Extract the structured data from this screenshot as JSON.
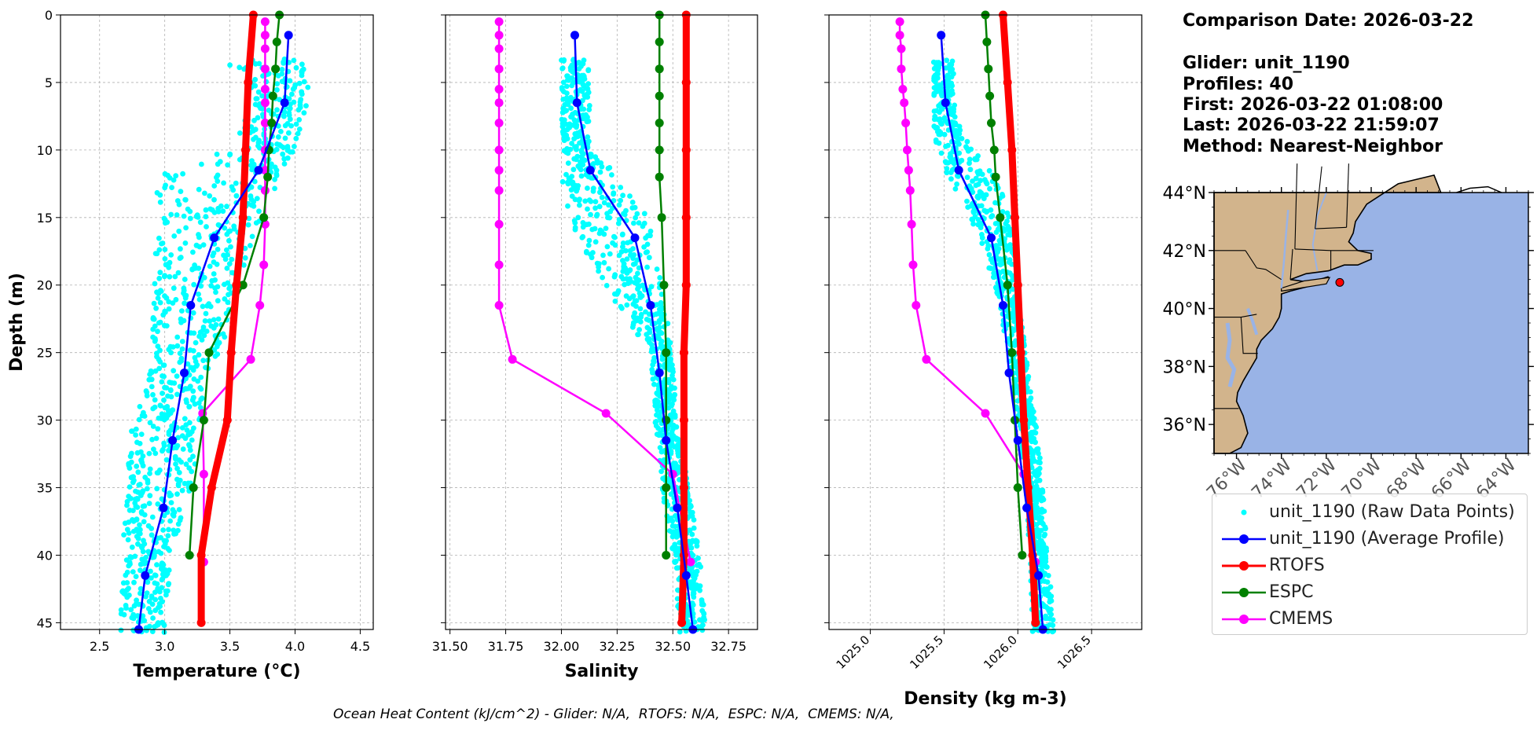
{
  "info": {
    "comparison_date": "Comparison Date: 2026-03-22",
    "glider": "Glider: unit_1190",
    "profiles": "Profiles: 40",
    "first": "First: 2026-03-22 01:08:00",
    "last": "Last: 2026-03-22 21:59:07",
    "method": "Method: Nearest-Neighbor"
  },
  "footer": "Ocean Heat Content (kJ/cm^2) - Glider: N/A,  RTOFS: N/A,  ESPC: N/A,  CMEMS: N/A,",
  "colors": {
    "raw": "#00ffff",
    "average": "#0000ff",
    "rtofs": "#ff0000",
    "espc": "#008000",
    "cmems": "#ff00ff",
    "land": "#d2b48c",
    "ocean": "#99b3e6",
    "glider_marker": "#ff0000"
  },
  "legend": [
    {
      "key": "raw",
      "label": "unit_1190 (Raw Data Points)",
      "style": "points"
    },
    {
      "key": "average",
      "label": "unit_1190 (Average Profile)",
      "style": "line-marker"
    },
    {
      "key": "rtofs",
      "label": "RTOFS",
      "style": "line-marker"
    },
    {
      "key": "espc",
      "label": "ESPC",
      "style": "line-marker"
    },
    {
      "key": "cmems",
      "label": "CMEMS",
      "style": "line-marker"
    }
  ],
  "map": {
    "lon_range": [
      -77,
      -63
    ],
    "lat_range": [
      35,
      44
    ],
    "lat_ticks": [
      36,
      38,
      40,
      42,
      44
    ],
    "lat_tick_labels": [
      "36°N",
      "38°N",
      "40°N",
      "42°N",
      "44°N"
    ],
    "lon_ticks": [
      -76,
      -74,
      -72,
      -70,
      -68,
      -66,
      -64
    ],
    "lon_tick_labels": [
      "76°W",
      "74°W",
      "72°W",
      "70°W",
      "68°W",
      "66°W",
      "64°W"
    ],
    "glider_position": {
      "lon": -71.4,
      "lat": 40.9
    }
  },
  "chart_data": [
    {
      "type": "line",
      "title": "",
      "xlabel": "Temperature (°C)",
      "ylabel": "Depth (m)",
      "xlim": [
        2.2,
        4.6
      ],
      "ylim": [
        45.5,
        0
      ],
      "xticks": [
        2.5,
        3.0,
        3.5,
        4.0,
        4.5
      ],
      "xtick_labels": [
        "2.5",
        "3.0",
        "3.5",
        "4.0",
        "4.5"
      ],
      "yticks": [
        0,
        5,
        10,
        15,
        20,
        25,
        30,
        35,
        40,
        45
      ],
      "ytick_labels": [
        "0",
        "5",
        "10",
        "15",
        "20",
        "25",
        "30",
        "35",
        "40",
        "45"
      ],
      "grid": true,
      "raw_band": [
        [
          3.5,
          4.1
        ],
        [
          3.7,
          4.1
        ],
        [
          3.6,
          4.05
        ],
        [
          3.55,
          4.0
        ],
        [
          2.95,
          3.9
        ],
        [
          2.92,
          3.75
        ],
        [
          2.92,
          3.55
        ],
        [
          2.9,
          3.45
        ],
        [
          2.88,
          3.3
        ],
        [
          2.75,
          3.28
        ],
        [
          2.7,
          3.2
        ],
        [
          2.68,
          3.05
        ],
        [
          2.66,
          3.0
        ]
      ],
      "raw_band_depths": [
        3.5,
        6,
        8,
        10,
        12,
        15,
        20,
        25,
        27,
        30,
        35,
        40,
        45.5
      ],
      "series": [
        {
          "key": "average",
          "name": "unit_1190 (Average Profile)",
          "y": [
            1.5,
            6.5,
            11.5,
            16.5,
            21.5,
            26.5,
            31.5,
            36.5,
            41.5,
            45.5
          ],
          "x": [
            3.95,
            3.92,
            3.72,
            3.38,
            3.2,
            3.15,
            3.06,
            2.99,
            2.85,
            2.8
          ]
        },
        {
          "key": "rtofs",
          "name": "RTOFS",
          "y": [
            0,
            5,
            10,
            15,
            20,
            25,
            30,
            35,
            40,
            45
          ],
          "x": [
            3.68,
            3.64,
            3.62,
            3.6,
            3.55,
            3.51,
            3.48,
            3.36,
            3.28,
            3.28
          ]
        },
        {
          "key": "espc",
          "name": "ESPC",
          "y": [
            0,
            2,
            4,
            6,
            8,
            10,
            12,
            15,
            20,
            25,
            30,
            35,
            40
          ],
          "x": [
            3.88,
            3.86,
            3.85,
            3.83,
            3.82,
            3.8,
            3.79,
            3.76,
            3.6,
            3.34,
            3.3,
            3.22,
            3.19
          ]
        },
        {
          "key": "cmems",
          "name": "CMEMS",
          "y": [
            0.5,
            1.5,
            2.5,
            4,
            5.5,
            6.5,
            8,
            10,
            11.5,
            13,
            15.5,
            18.5,
            21.5,
            25.5,
            29.5,
            34,
            40.5
          ],
          "x": [
            3.77,
            3.77,
            3.77,
            3.77,
            3.77,
            3.77,
            3.77,
            3.77,
            3.77,
            3.77,
            3.77,
            3.76,
            3.73,
            3.66,
            3.29,
            3.3,
            3.3
          ]
        }
      ]
    },
    {
      "type": "line",
      "title": "",
      "xlabel": "Salinity",
      "ylabel": "",
      "xlim": [
        31.48,
        32.88
      ],
      "ylim": [
        45.5,
        0
      ],
      "xticks": [
        31.5,
        31.75,
        32.0,
        32.25,
        32.5,
        32.75
      ],
      "xtick_labels": [
        "31.50",
        "31.75",
        "32.00",
        "32.25",
        "32.50",
        "32.75"
      ],
      "yticks": [
        0,
        5,
        10,
        15,
        20,
        25,
        30,
        35,
        40,
        45
      ],
      "grid": true,
      "raw_band": [
        [
          32.0,
          32.13
        ],
        [
          32.0,
          32.13
        ],
        [
          32.0,
          32.13
        ],
        [
          32.0,
          32.25
        ],
        [
          32.02,
          32.4
        ],
        [
          32.2,
          32.45
        ],
        [
          32.4,
          32.5
        ],
        [
          32.42,
          32.52
        ],
        [
          32.45,
          32.57
        ],
        [
          32.5,
          32.62
        ],
        [
          32.53,
          32.65
        ]
      ],
      "raw_band_depths": [
        3.5,
        8,
        10,
        12,
        15,
        20,
        25,
        30,
        35,
        40,
        45.5
      ],
      "series": [
        {
          "key": "average",
          "name": "unit_1190 (Average Profile)",
          "y": [
            1.5,
            6.5,
            11.5,
            16.5,
            21.5,
            26.5,
            31.5,
            36.5,
            41.5,
            45.5
          ],
          "x": [
            32.06,
            32.07,
            32.13,
            32.33,
            32.4,
            32.44,
            32.47,
            32.52,
            32.56,
            32.59
          ]
        },
        {
          "key": "rtofs",
          "name": "RTOFS",
          "y": [
            0,
            5,
            10,
            15,
            20,
            25,
            30,
            35,
            40,
            45
          ],
          "x": [
            32.56,
            32.56,
            32.56,
            32.56,
            32.56,
            32.55,
            32.55,
            32.55,
            32.55,
            32.54
          ]
        },
        {
          "key": "espc",
          "name": "ESPC",
          "y": [
            0,
            2,
            4,
            6,
            8,
            10,
            12,
            15,
            20,
            25,
            30,
            35,
            40
          ],
          "x": [
            32.44,
            32.44,
            32.44,
            32.44,
            32.44,
            32.44,
            32.44,
            32.45,
            32.46,
            32.47,
            32.47,
            32.47,
            32.47
          ]
        },
        {
          "key": "cmems",
          "name": "CMEMS",
          "y": [
            0.5,
            1.5,
            2.5,
            4,
            5.5,
            6.5,
            8,
            10,
            11.5,
            13,
            15.5,
            18.5,
            21.5,
            25.5,
            29.5,
            34,
            40.5
          ],
          "x": [
            31.72,
            31.72,
            31.72,
            31.72,
            31.72,
            31.72,
            31.72,
            31.72,
            31.72,
            31.72,
            31.72,
            31.72,
            31.72,
            31.78,
            32.2,
            32.5,
            32.58
          ]
        }
      ]
    },
    {
      "type": "line",
      "title": "",
      "xlabel": "Density (kg m-3)",
      "ylabel": "",
      "xlim": [
        1024.72,
        1026.84
      ],
      "ylim": [
        45.5,
        0
      ],
      "xticks": [
        1025.0,
        1025.5,
        1026.0,
        1026.5
      ],
      "xtick_labels": [
        "1025.0",
        "1025.5",
        "1026.0",
        "1026.5"
      ],
      "yticks": [
        0,
        5,
        10,
        15,
        20,
        25,
        30,
        35,
        40,
        45
      ],
      "grid": true,
      "raw_band": [
        [
          1025.43,
          1025.56
        ],
        [
          1025.43,
          1025.58
        ],
        [
          1025.45,
          1025.7
        ],
        [
          1025.52,
          1025.85
        ],
        [
          1025.68,
          1025.95
        ],
        [
          1025.85,
          1026.0
        ],
        [
          1025.93,
          1026.05
        ],
        [
          1026.0,
          1026.12
        ],
        [
          1026.05,
          1026.17
        ],
        [
          1026.08,
          1026.2
        ],
        [
          1026.1,
          1026.25
        ]
      ],
      "raw_band_depths": [
        3.5,
        8,
        10,
        12,
        15,
        20,
        25,
        30,
        35,
        40,
        45.5
      ],
      "series": [
        {
          "key": "average",
          "name": "unit_1190 (Average Profile)",
          "y": [
            1.5,
            6.5,
            11.5,
            16.5,
            21.5,
            26.5,
            31.5,
            36.5,
            41.5,
            45.5
          ],
          "x": [
            1025.48,
            1025.51,
            1025.6,
            1025.82,
            1025.9,
            1025.94,
            1026.0,
            1026.06,
            1026.14,
            1026.17
          ]
        },
        {
          "key": "rtofs",
          "name": "RTOFS",
          "y": [
            0,
            5,
            10,
            15,
            20,
            25,
            30,
            35,
            40,
            45
          ],
          "x": [
            1025.9,
            1025.93,
            1025.96,
            1025.98,
            1026.0,
            1026.02,
            1026.04,
            1026.07,
            1026.1,
            1026.12
          ]
        },
        {
          "key": "espc",
          "name": "ESPC",
          "y": [
            0,
            2,
            4,
            6,
            8,
            10,
            12,
            15,
            20,
            25,
            30,
            35,
            40
          ],
          "x": [
            1025.78,
            1025.79,
            1025.8,
            1025.81,
            1025.82,
            1025.84,
            1025.85,
            1025.88,
            1025.93,
            1025.96,
            1025.98,
            1026.0,
            1026.03
          ]
        },
        {
          "key": "cmems",
          "name": "CMEMS",
          "y": [
            0.5,
            1.5,
            2.5,
            4,
            5.5,
            6.5,
            8,
            10,
            11.5,
            13,
            15.5,
            18.5,
            21.5,
            25.5,
            29.5,
            34,
            40.5
          ],
          "x": [
            1025.2,
            1025.2,
            1025.21,
            1025.21,
            1025.22,
            1025.23,
            1025.24,
            1025.25,
            1025.26,
            1025.27,
            1025.28,
            1025.29,
            1025.31,
            1025.38,
            1025.78,
            1026.04,
            1026.12
          ]
        }
      ]
    }
  ]
}
